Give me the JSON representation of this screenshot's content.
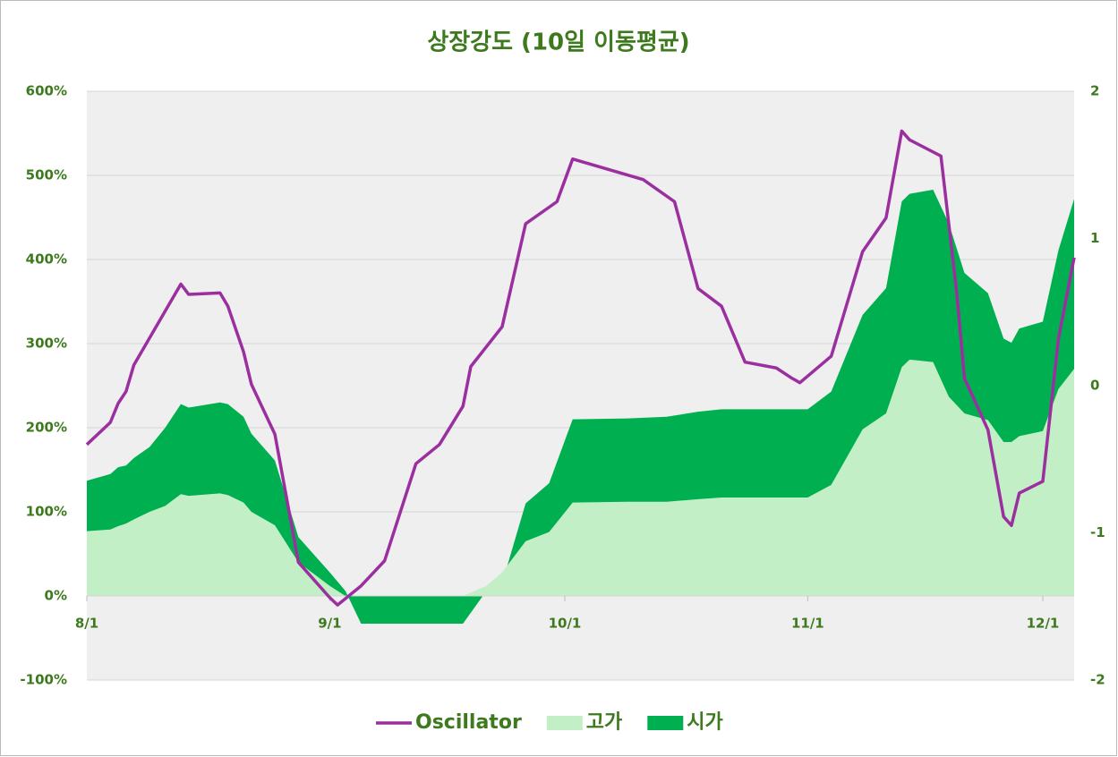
{
  "chart_data": {
    "type": "area-line",
    "title": "상장강도 (10일 이동평균)",
    "xlim": [
      "8/1",
      "12/5"
    ],
    "xticks": [
      "8/1",
      "9/1",
      "10/1",
      "11/1",
      "12/1"
    ],
    "ylim": [
      -100,
      600
    ],
    "yticks": [
      {
        "value": -100,
        "label": "-100%"
      },
      {
        "value": 0,
        "label": "0%"
      },
      {
        "value": 100,
        "label": "100%"
      },
      {
        "value": 200,
        "label": "200%"
      },
      {
        "value": 300,
        "label": "300%"
      },
      {
        "value": 400,
        "label": "400%"
      },
      {
        "value": 500,
        "label": "500%"
      },
      {
        "value": 600,
        "label": "600%"
      }
    ],
    "y2lim": [
      -2,
      2
    ],
    "y2ticks": [
      -2,
      -1,
      0,
      1,
      2
    ],
    "grid": true,
    "legend": "bottom",
    "series": [
      {
        "name": "시가",
        "kind": "area",
        "color": "#00b050",
        "x": [
          "8/1",
          "8/4",
          "8/5",
          "8/6",
          "8/7",
          "8/9",
          "8/11",
          "8/13",
          "8/14",
          "8/18",
          "8/19",
          "8/21",
          "8/22",
          "8/25",
          "8/28",
          "9/1",
          "9/3",
          "9/5",
          "9/18",
          "9/21",
          "9/23",
          "9/26",
          "9/29",
          "10/2",
          "10/9",
          "10/14",
          "10/18",
          "10/21",
          "11/1",
          "11/4",
          "11/8",
          "11/11",
          "11/13",
          "11/14",
          "11/17",
          "11/19",
          "11/21",
          "11/24",
          "11/26",
          "11/27",
          "11/28",
          "12/1",
          "12/3",
          "12/5"
        ],
        "values": [
          137,
          145,
          153,
          155,
          164,
          177,
          200,
          228,
          224,
          230,
          228,
          213,
          193,
          161,
          70,
          28,
          6,
          -33,
          -33,
          6,
          15,
          110,
          134,
          210,
          211,
          213,
          219,
          222,
          222,
          243,
          334,
          366,
          469,
          478,
          483,
          443,
          384,
          360,
          306,
          301,
          318,
          326,
          411,
          472
        ]
      },
      {
        "name": "고가",
        "kind": "area",
        "color": "#c3efc6",
        "x": [
          "8/1",
          "8/4",
          "8/5",
          "8/6",
          "8/7",
          "8/9",
          "8/11",
          "8/13",
          "8/14",
          "8/18",
          "8/19",
          "8/21",
          "8/22",
          "8/25",
          "8/28",
          "9/1",
          "9/3",
          "9/5",
          "9/18",
          "9/21",
          "9/23",
          "9/26",
          "9/29",
          "10/2",
          "10/9",
          "10/14",
          "10/18",
          "10/21",
          "11/1",
          "11/4",
          "11/8",
          "11/11",
          "11/13",
          "11/14",
          "11/17",
          "11/19",
          "11/21",
          "11/24",
          "11/26",
          "11/27",
          "11/28",
          "12/1",
          "12/3",
          "12/5"
        ],
        "values": [
          77,
          79,
          83,
          86,
          91,
          100,
          107,
          121,
          119,
          122,
          120,
          111,
          100,
          84,
          40,
          12,
          0,
          0,
          0,
          12,
          28,
          65,
          76,
          111,
          112,
          112,
          115,
          117,
          117,
          132,
          198,
          217,
          272,
          281,
          278,
          237,
          217,
          209,
          183,
          183,
          190,
          196,
          246,
          270
        ]
      },
      {
        "name": "Oscillator",
        "kind": "line",
        "axis": "y2",
        "color": "#9b2fa0",
        "x": [
          "8/1",
          "8/4",
          "8/5",
          "8/6",
          "8/7",
          "8/13",
          "8/14",
          "8/18",
          "8/19",
          "8/21",
          "8/22",
          "8/25",
          "8/28",
          "9/1",
          "9/2",
          "9/5",
          "9/8",
          "9/12",
          "9/15",
          "9/18",
          "9/19",
          "9/23",
          "9/26",
          "9/30",
          "10/2",
          "10/11",
          "10/15",
          "10/18",
          "10/21",
          "10/24",
          "10/28",
          "10/30",
          "10/31",
          "11/4",
          "11/8",
          "11/11",
          "11/13",
          "11/14",
          "11/18",
          "11/20",
          "11/21",
          "11/24",
          "11/26",
          "11/27",
          "11/28",
          "12/1",
          "12/3",
          "12/5"
        ],
        "values": [
          -0.4,
          -0.25,
          -0.12,
          -0.04,
          0.14,
          0.69,
          0.62,
          0.63,
          0.54,
          0.23,
          0.01,
          -0.33,
          -1.2,
          -1.44,
          -1.49,
          -1.36,
          -1.19,
          -0.53,
          -0.4,
          -0.14,
          0.13,
          0.4,
          1.1,
          1.25,
          1.54,
          1.4,
          1.25,
          0.66,
          0.54,
          0.16,
          0.12,
          0.05,
          0.02,
          0.2,
          0.91,
          1.14,
          1.73,
          1.67,
          1.56,
          0.64,
          0.05,
          -0.3,
          -0.89,
          -0.95,
          -0.73,
          -0.65,
          0.32,
          0.87
        ]
      }
    ]
  }
}
